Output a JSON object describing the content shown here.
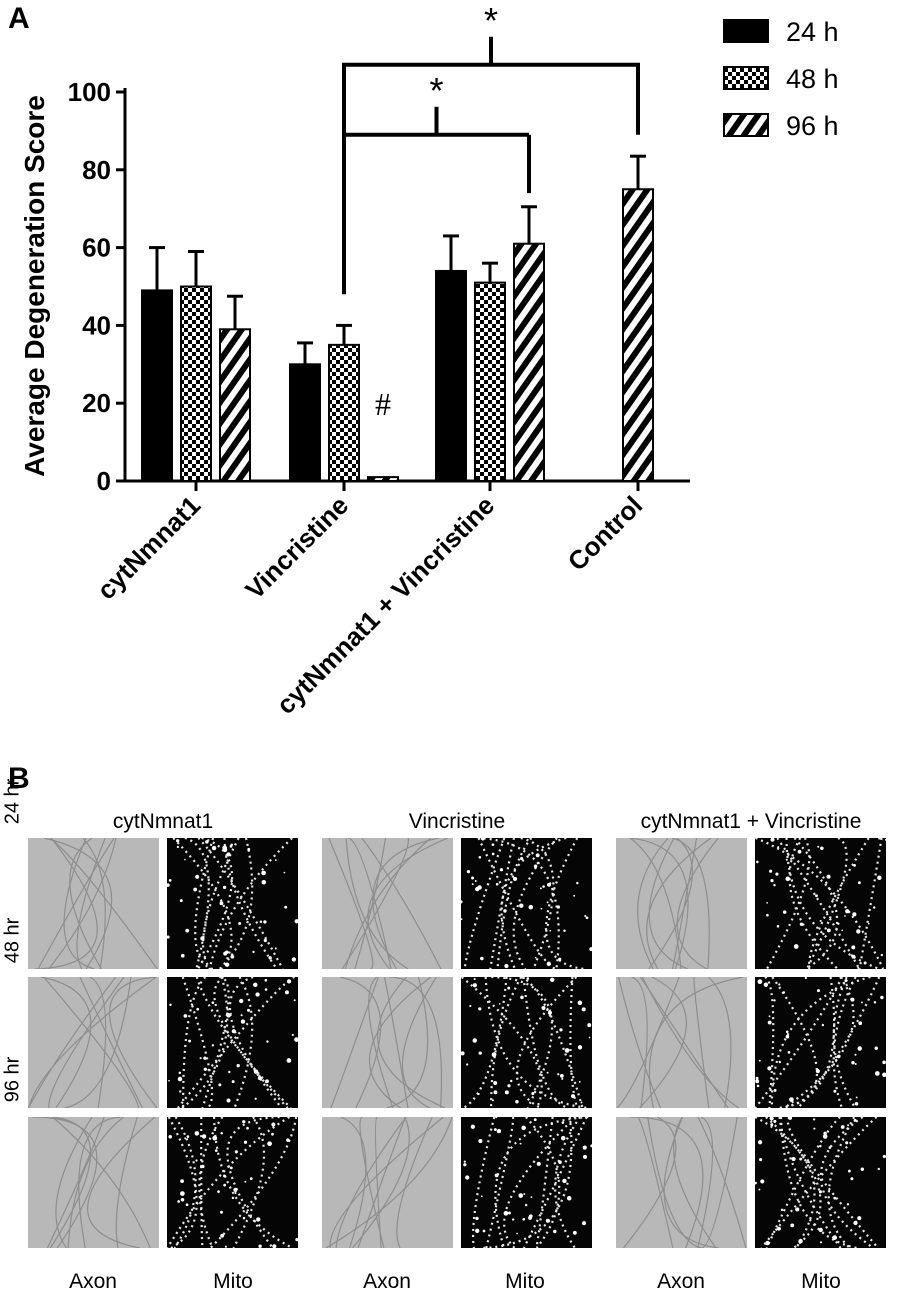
{
  "panels": {
    "a_label": "A",
    "b_label": "B"
  },
  "chart_data": {
    "type": "bar",
    "categories": [
      "cytNmnat1",
      "Vincristine",
      "cytNmnat1 + Vincristine",
      "Control"
    ],
    "series": [
      {
        "name": "24 h",
        "pattern": "solid",
        "values": [
          49,
          30,
          54,
          null
        ],
        "errors": [
          11,
          5.5,
          9,
          null
        ]
      },
      {
        "name": "48 h",
        "pattern": "checker",
        "values": [
          50,
          35,
          51,
          null
        ],
        "errors": [
          9,
          5,
          5,
          null
        ]
      },
      {
        "name": "96 h",
        "pattern": "hatch",
        "values": [
          39,
          1,
          61,
          75
        ],
        "errors": [
          8.5,
          0,
          9.5,
          8.5
        ]
      }
    ],
    "ylabel": "Average Degeneration Score",
    "xlabel": "",
    "ylim": [
      0,
      100
    ],
    "yticks": [
      0,
      20,
      40,
      60,
      80,
      100
    ],
    "legend_position": "top-right",
    "annotations": {
      "hash": "#",
      "star": "*"
    }
  },
  "grid": {
    "columns": [
      "cytNmnat1",
      "Vincristine",
      "cytNmnat1 + Vincristine"
    ],
    "rows": [
      "24 hr",
      "48 hr",
      "96 hr"
    ],
    "bottom_labels": [
      "Axon",
      "Mito",
      "Axon",
      "Mito",
      "Axon",
      "Mito"
    ]
  }
}
